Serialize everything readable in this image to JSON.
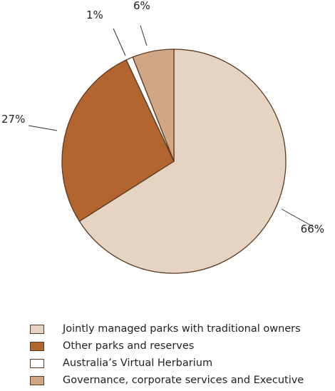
{
  "chart_data": {
    "type": "pie",
    "slices": [
      {
        "label": "Jointly managed parks with traditional owners",
        "value": 66,
        "display": "66%",
        "color": "#e6d3c2"
      },
      {
        "label": "Other parks and reserves",
        "value": 27,
        "display": "27%",
        "color": "#b2652f"
      },
      {
        "label": "Australia’s Virtual Herbarium",
        "value": 1,
        "display": "1%",
        "color": "#ffffff"
      },
      {
        "label": "Governance, corporate services and Executive",
        "value": 6,
        "display": "6%",
        "color": "#d1a684"
      }
    ],
    "legend_position": "bottom",
    "stroke_color": "#5a3a22"
  }
}
